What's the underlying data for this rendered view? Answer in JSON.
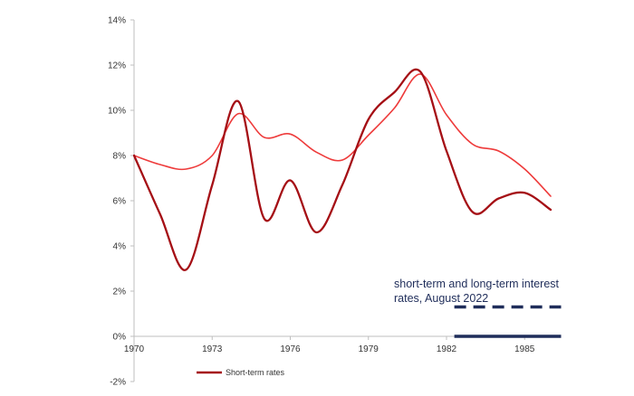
{
  "chart_data": {
    "type": "line",
    "title": "",
    "xlabel": "",
    "ylabel": "",
    "xlim": [
      1970,
      1986
    ],
    "ylim": [
      -2,
      14
    ],
    "x_ticks": [
      "1970",
      "1973",
      "1976",
      "1979",
      "1982",
      "1985"
    ],
    "y_ticks": [
      "-2%",
      "0%",
      "2%",
      "4%",
      "6%",
      "8%",
      "10%",
      "12%",
      "14%"
    ],
    "grid": false,
    "series": [
      {
        "name": "Short-term rates",
        "color": "#a50f15",
        "x": [
          1970,
          1971,
          1972,
          1973,
          1974,
          1975,
          1976,
          1977,
          1978,
          1979,
          1980,
          1981,
          1982,
          1983,
          1984,
          1985,
          1986
        ],
        "values": [
          8.0,
          5.4,
          2.95,
          6.7,
          10.4,
          5.2,
          6.9,
          4.6,
          6.7,
          9.6,
          10.8,
          11.7,
          8.2,
          5.5,
          6.1,
          6.35,
          5.6
        ]
      },
      {
        "name": "",
        "color": "#ee3b3b",
        "x": [
          1970,
          1971,
          1972,
          1973,
          1974,
          1975,
          1976,
          1977,
          1978,
          1979,
          1980,
          1981,
          1982,
          1983,
          1984,
          1985,
          1986
        ],
        "values": [
          8.0,
          7.6,
          7.4,
          8.0,
          9.85,
          8.8,
          8.95,
          8.15,
          7.8,
          8.9,
          10.1,
          11.6,
          9.8,
          8.5,
          8.2,
          7.4,
          6.2
        ]
      }
    ],
    "annotation": {
      "text_lines": [
        "short-term and long-term interest",
        "rates, August 2022"
      ],
      "color": "#1f2d5a",
      "dashed_level": 1.3,
      "solid_level": 0.0,
      "x_range": [
        1982.3,
        1986.4
      ]
    },
    "legend": {
      "position": "bottom-left"
    }
  }
}
